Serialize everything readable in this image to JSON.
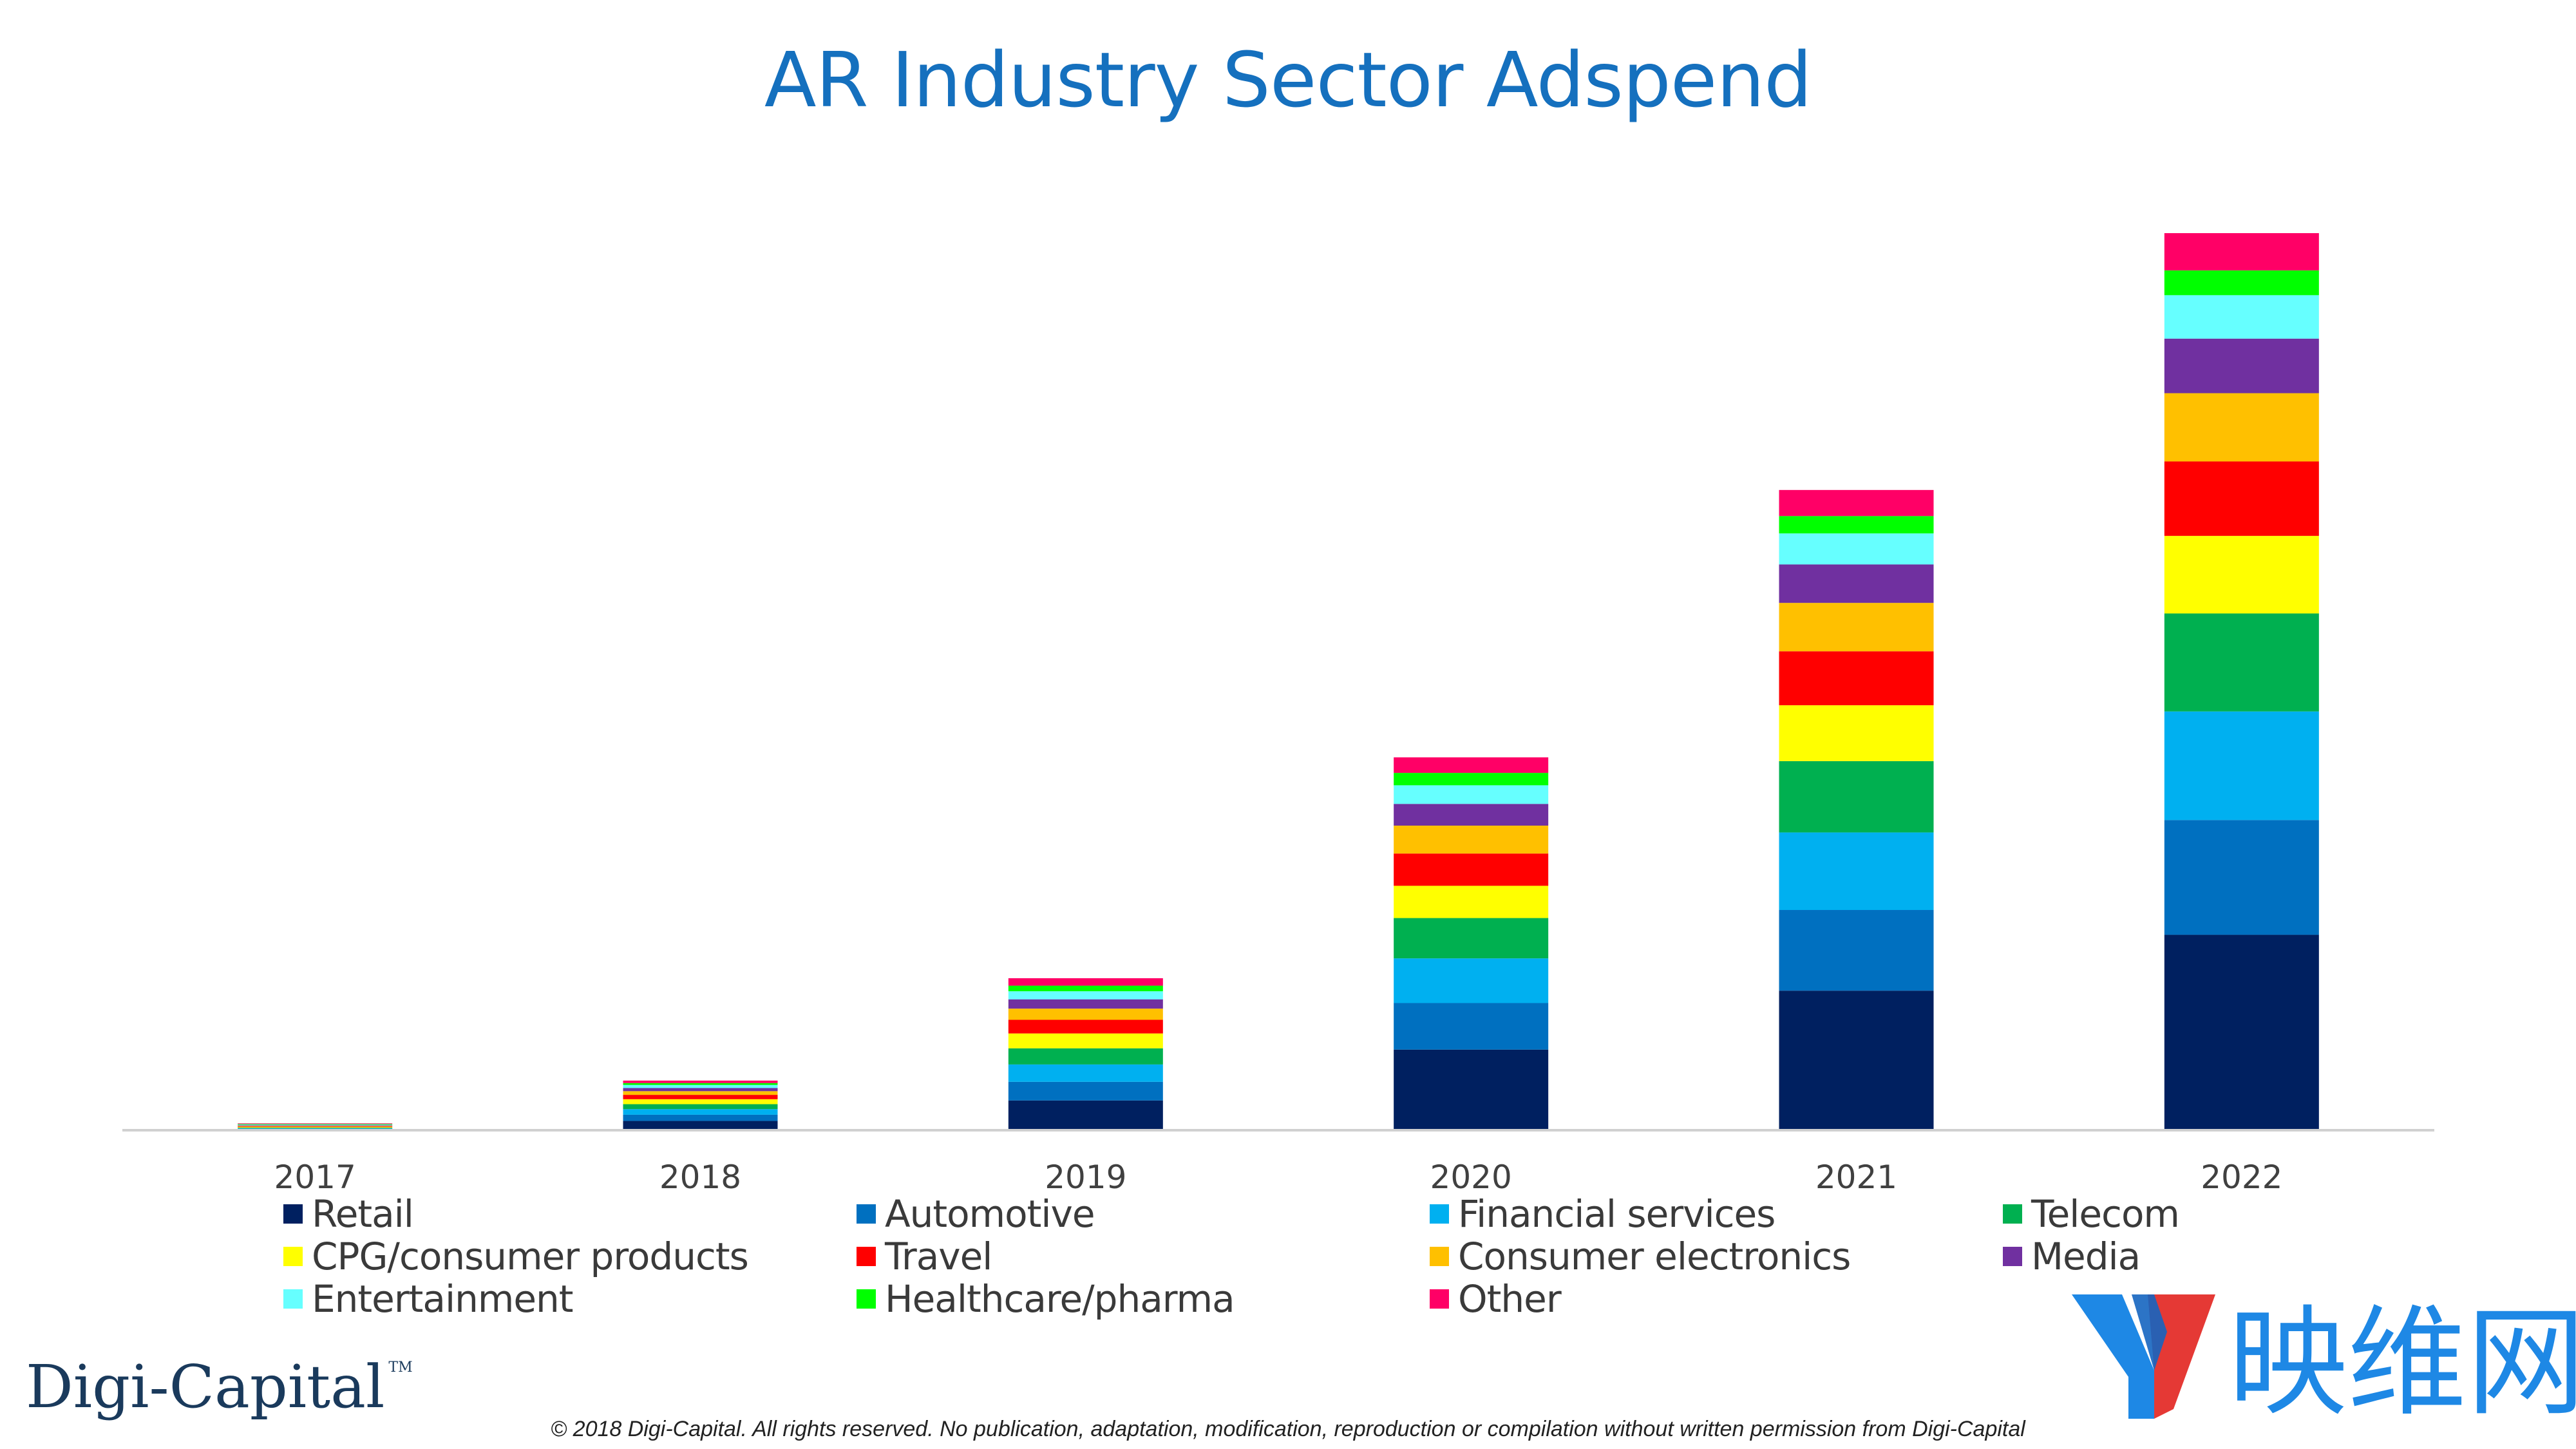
{
  "title": "AR Industry Sector Adspend",
  "chart_data": {
    "type": "bar",
    "stacked": true,
    "title": "AR Industry Sector Adspend",
    "xlabel": "",
    "ylabel": "",
    "y_axis_shown": false,
    "grid": false,
    "legend_position": "bottom",
    "categories": [
      "2017",
      "2018",
      "2019",
      "2020",
      "2021",
      "2022"
    ],
    "ylim": [
      0,
      1500
    ],
    "series": [
      {
        "name": "Retail",
        "color": "#002060",
        "values": [
          1,
          15,
          48,
          130,
          225,
          315
        ]
      },
      {
        "name": "Automotive",
        "color": "#0070c0",
        "values": [
          1,
          10,
          30,
          75,
          130,
          185
        ]
      },
      {
        "name": "Financial services",
        "color": "#00b0f0",
        "values": [
          1,
          9,
          28,
          72,
          125,
          175
        ]
      },
      {
        "name": "Telecom",
        "color": "#00b050",
        "values": [
          1,
          8,
          26,
          65,
          115,
          158
        ]
      },
      {
        "name": "CPG/consumer products",
        "color": "#ffff00",
        "values": [
          1,
          8,
          24,
          52,
          90,
          125
        ]
      },
      {
        "name": "Travel",
        "color": "#ff0000",
        "values": [
          1,
          7,
          22,
          52,
          87,
          120
        ]
      },
      {
        "name": "Consumer electronics",
        "color": "#ffc000",
        "values": [
          1,
          6,
          18,
          45,
          78,
          110
        ]
      },
      {
        "name": "Media",
        "color": "#7030a0",
        "values": [
          1,
          5,
          15,
          35,
          62,
          88
        ]
      },
      {
        "name": "Entertainment",
        "color": "#66ffff",
        "values": [
          1,
          5,
          13,
          30,
          50,
          70
        ]
      },
      {
        "name": "Healthcare/pharma",
        "color": "#00ff00",
        "values": [
          1,
          3,
          9,
          20,
          28,
          40
        ]
      },
      {
        "name": "Other",
        "color": "#ff0066",
        "values": [
          1,
          4,
          12,
          25,
          42,
          60
        ]
      }
    ]
  },
  "brand": {
    "name": "Digi-Capital",
    "tm": "TM"
  },
  "copyright": "© 2018 Digi-Capital. All rights reserved. No publication, adaptation, modification, reproduction or compilation without written permission from Digi-Capital",
  "watermark": {
    "text": "映维网",
    "logo_colors": [
      "#1e88e5",
      "#e53935"
    ]
  }
}
